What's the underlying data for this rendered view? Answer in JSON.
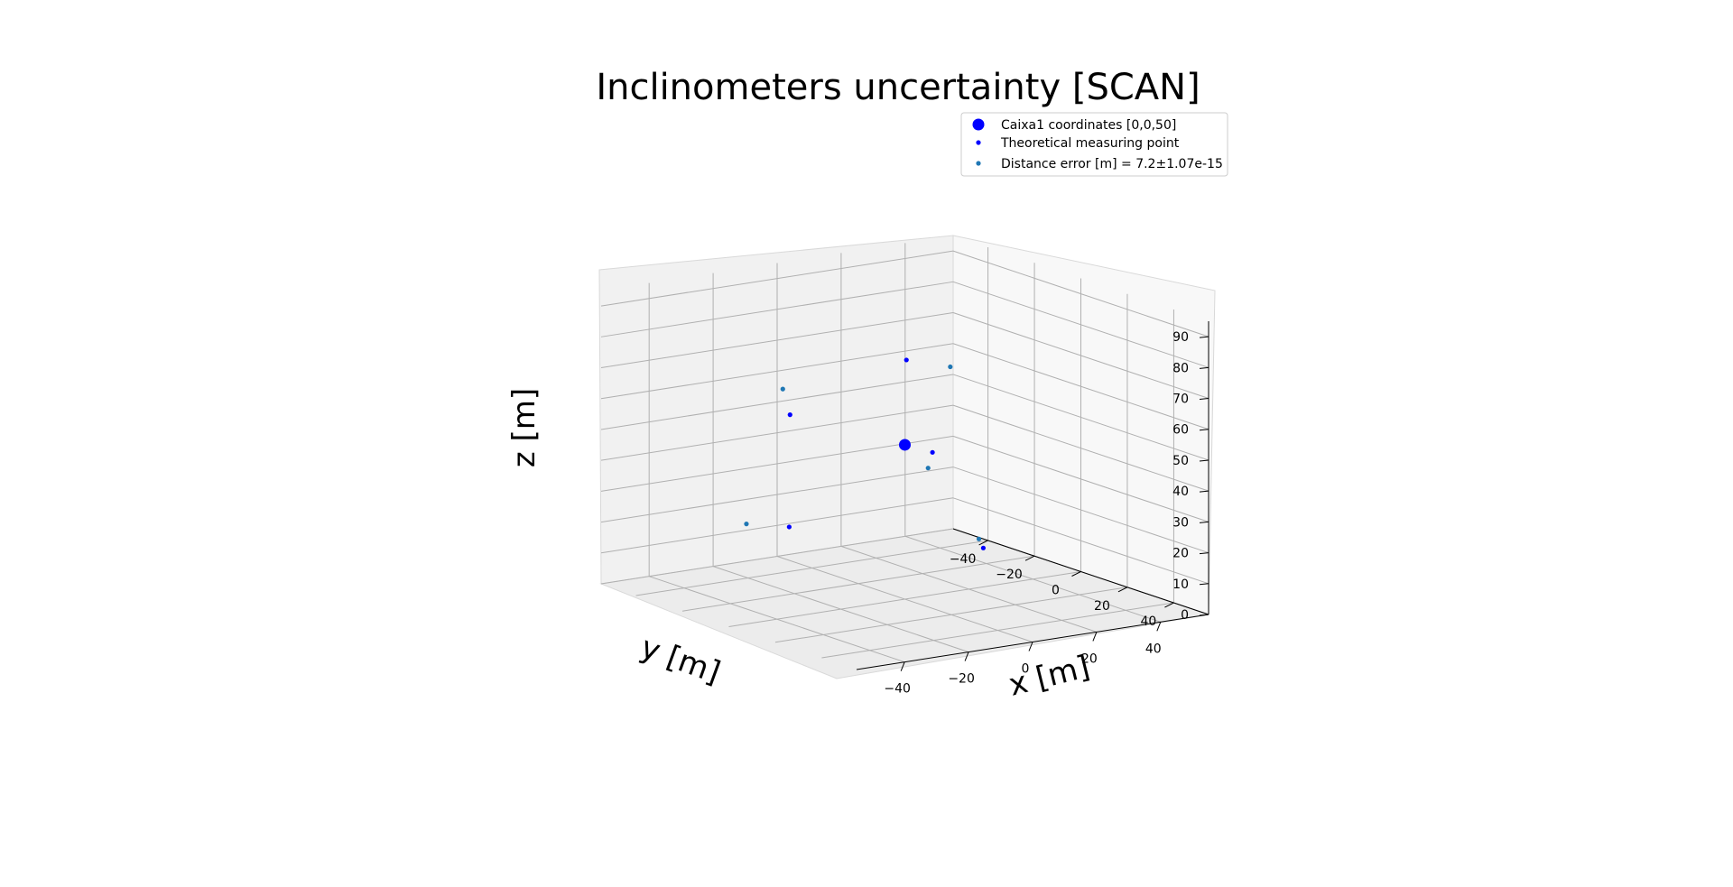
{
  "chart_data": {
    "type": "scatter",
    "projection": "3d",
    "title": "Inclinometers uncertainty [SCAN]",
    "xlabel": "x [m]",
    "ylabel": "y [m]",
    "zlabel": "z [m]",
    "x_ticks": [
      "−40",
      "−20",
      "0",
      "20",
      "40"
    ],
    "y_ticks": [
      "−40",
      "−20",
      "0",
      "20",
      "40"
    ],
    "z_ticks": [
      "0",
      "10",
      "20",
      "30",
      "40",
      "50",
      "60",
      "70",
      "80",
      "90"
    ],
    "grid": true,
    "legend_position": "top-right",
    "series": [
      {
        "name": "Caixa1 coordinates [0,0,50]",
        "color": "#0000ff",
        "marker": "large-dot",
        "points": [
          {
            "x": 0,
            "y": 0,
            "z": 50
          }
        ]
      },
      {
        "name": "Theoretical measuring point",
        "color": "#0000ff",
        "marker": "small-dot",
        "points": [
          {
            "x": -18,
            "y": -25,
            "z": 20
          },
          {
            "x": 15,
            "y": -20,
            "z": 70
          },
          {
            "x": 5,
            "y": 5,
            "z": 48
          },
          {
            "x": -25,
            "y": -15,
            "z": 60
          },
          {
            "x": 10,
            "y": 20,
            "z": 20
          }
        ]
      },
      {
        "name": "Distance error [m] = 7.2±1.07e-15",
        "color": "#1f77b4",
        "marker": "small-dot",
        "points": [
          {
            "x": -35,
            "y": -20,
            "z": 25
          },
          {
            "x": 20,
            "y": -8,
            "z": 70
          },
          {
            "x": 0,
            "y": 10,
            "z": 45
          },
          {
            "x": -20,
            "y": -25,
            "z": 65
          },
          {
            "x": 5,
            "y": 25,
            "z": 25
          }
        ]
      }
    ]
  }
}
